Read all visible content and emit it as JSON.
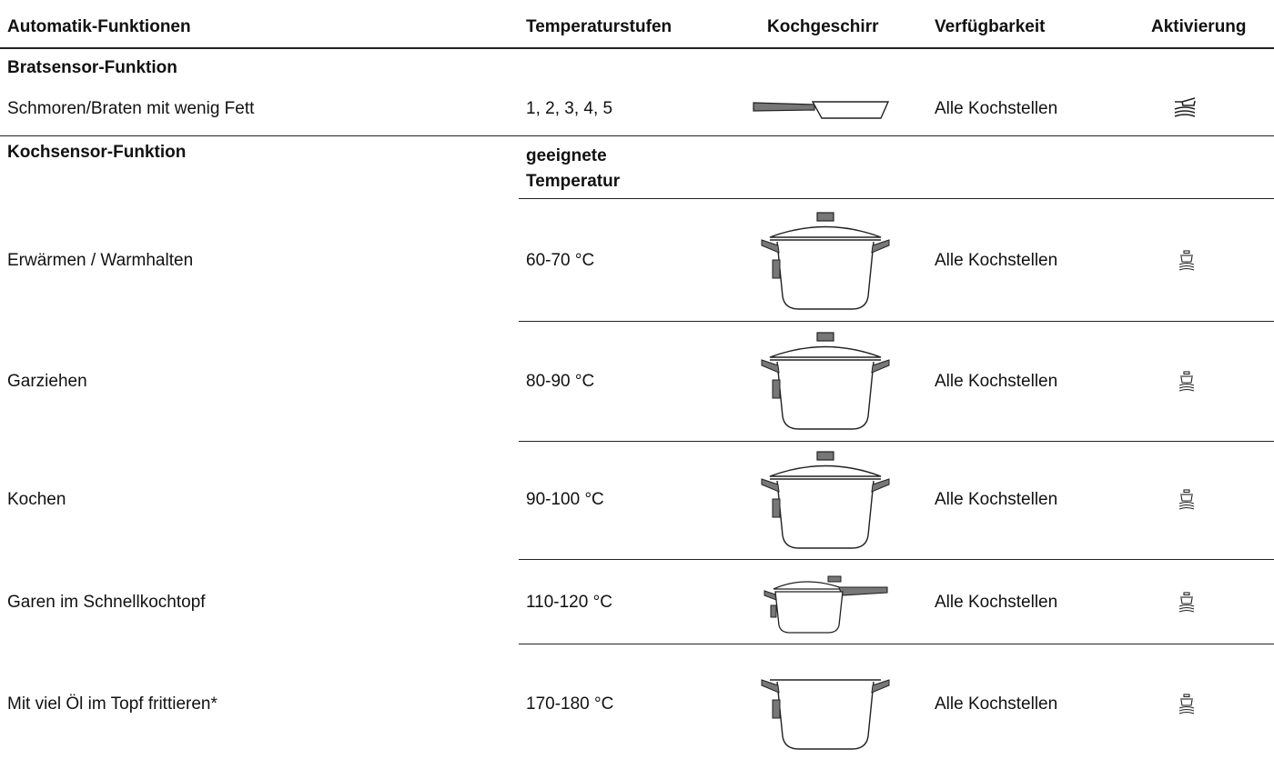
{
  "header": {
    "columns": [
      "Automatik-Funktionen",
      "Temperaturstufen",
      "Kochgeschirr",
      "Verfügbarkeit",
      "Aktivierung"
    ]
  },
  "sections": [
    {
      "title": "Bratsensor-Funktion",
      "rows": [
        {
          "function": "Schmoren/Braten mit wenig Fett",
          "temperature": "1, 2, 3, 4, 5",
          "availability": "Alle Kochstellen"
        }
      ]
    },
    {
      "title": "Kochsensor-Funktion",
      "temperature_header": "geeignete Temperatur",
      "rows": [
        {
          "function": "Erwärmen / Warmhalten",
          "temperature": "60-70 °C",
          "availability": "Alle Kochstellen"
        },
        {
          "function": "Garziehen",
          "temperature": "80-90 °C",
          "availability": "Alle Kochstellen"
        },
        {
          "function": "Kochen",
          "temperature": "90-100 °C",
          "availability": "Alle Kochstellen"
        },
        {
          "function": "Garen im Schnellkochtopf",
          "temperature": "110-120 °C",
          "availability": "Alle Kochstellen"
        },
        {
          "function": "Mit viel Öl im Topf frittieren*",
          "temperature": "170-180 °C",
          "availability": "Alle Kochstellen"
        }
      ]
    }
  ]
}
